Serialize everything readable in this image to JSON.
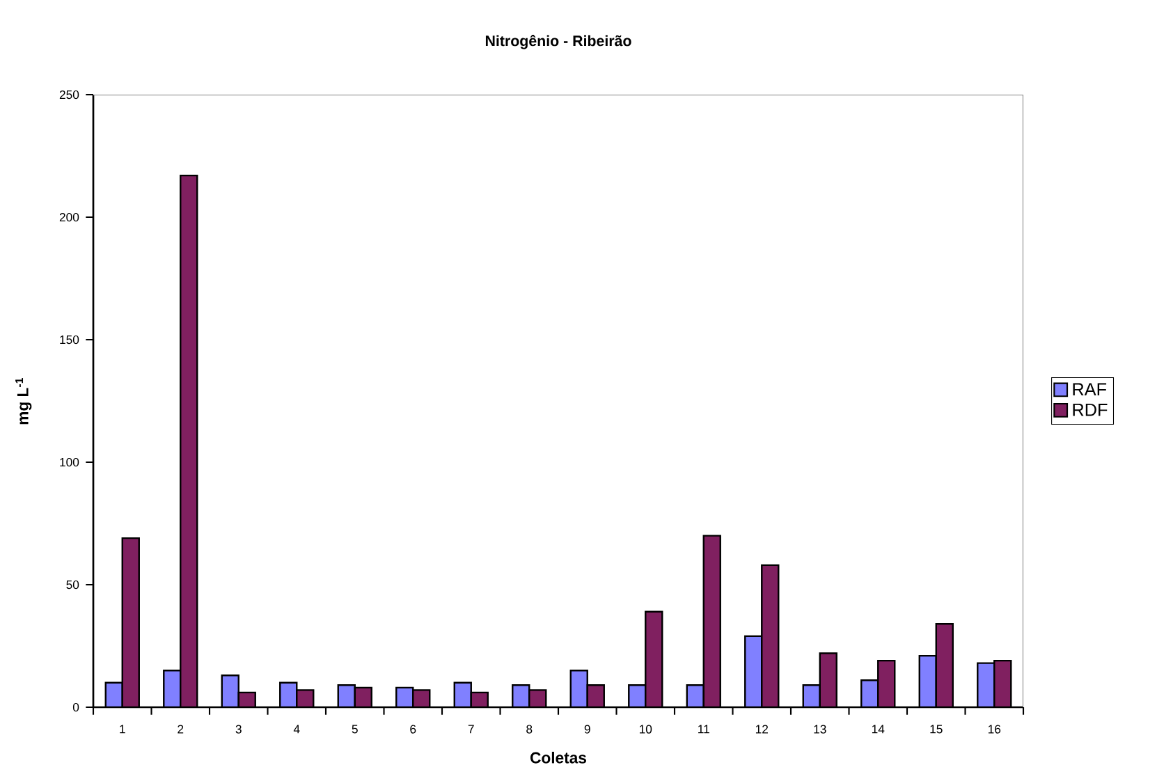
{
  "chart_data": {
    "type": "bar",
    "title": "Nitrogênio - Ribeirão",
    "xlabel": "Coletas",
    "ylabel": "mg L$^{-1}$",
    "categories": [
      "1",
      "2",
      "3",
      "4",
      "5",
      "6",
      "7",
      "8",
      "9",
      "10",
      "11",
      "12",
      "13",
      "14",
      "15",
      "16"
    ],
    "series": [
      {
        "name": "RAF",
        "color": "#8080ff",
        "values": [
          10,
          15,
          13,
          10,
          9,
          8,
          10,
          9,
          15,
          9,
          9,
          29,
          9,
          11,
          21,
          18
        ]
      },
      {
        "name": "RDF",
        "color": "#802060",
        "values": [
          69,
          217,
          6,
          7,
          8,
          7,
          6,
          7,
          9,
          39,
          70,
          58,
          22,
          19,
          34,
          19
        ]
      }
    ],
    "ylim": [
      0,
      250
    ],
    "yticks": [
      0,
      50,
      100,
      150,
      200,
      250
    ],
    "grid": false,
    "legend": "right"
  }
}
